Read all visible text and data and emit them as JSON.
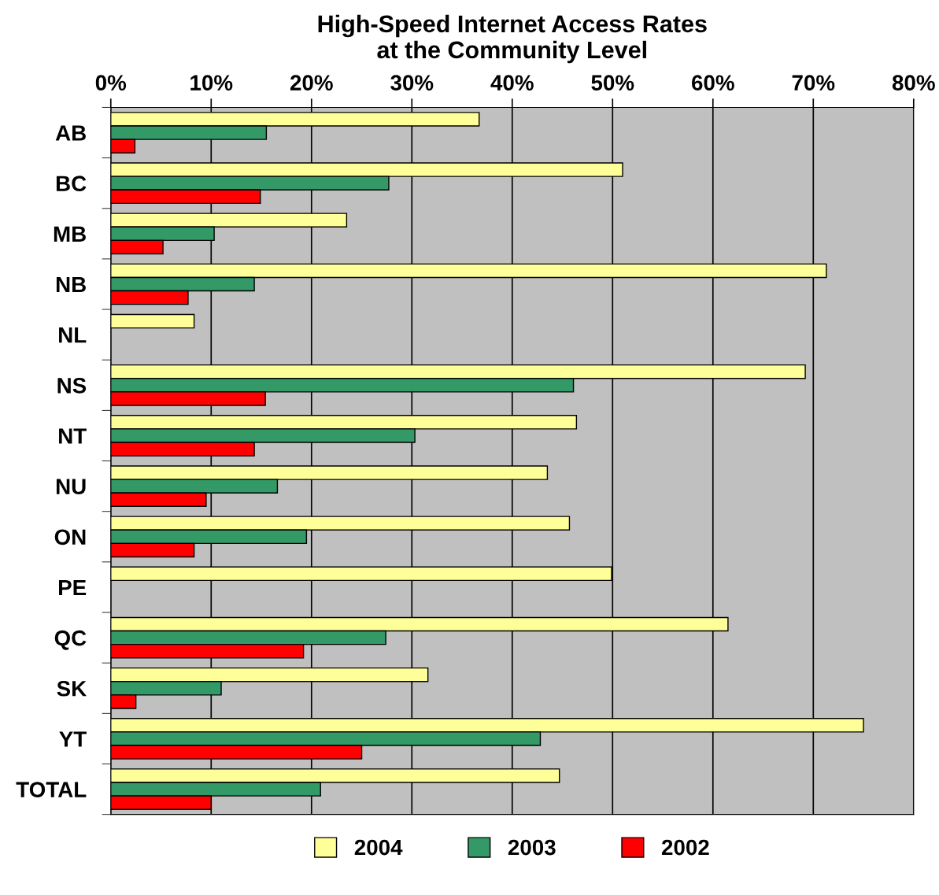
{
  "chart_data": {
    "type": "bar",
    "orientation": "horizontal",
    "title": "High-Speed Internet Access Rates\nat the Community Level",
    "categories": [
      "AB",
      "BC",
      "MB",
      "NB",
      "NL",
      "NS",
      "NT",
      "NU",
      "ON",
      "PE",
      "QC",
      "SK",
      "YT",
      "TOTAL"
    ],
    "series": [
      {
        "name": "2004",
        "color": "#ffff99",
        "values": [
          36.7,
          51.0,
          23.5,
          71.3,
          8.3,
          69.2,
          46.4,
          43.5,
          45.7,
          49.9,
          61.5,
          31.6,
          75.0,
          44.7
        ]
      },
      {
        "name": "2003",
        "color": "#339966",
        "values": [
          15.5,
          27.7,
          10.3,
          14.3,
          null,
          46.1,
          30.3,
          16.6,
          19.5,
          null,
          27.4,
          11.0,
          42.8,
          20.9
        ]
      },
      {
        "name": "2002",
        "color": "#ff0000",
        "values": [
          2.4,
          14.9,
          5.2,
          7.7,
          null,
          15.4,
          14.3,
          9.5,
          8.3,
          null,
          19.2,
          2.5,
          25.0,
          10.0
        ]
      }
    ],
    "xlim": [
      0,
      80
    ],
    "xticks": [
      {
        "value": 0,
        "label": "0%"
      },
      {
        "value": 10,
        "label": "10%"
      },
      {
        "value": 20,
        "label": "20%"
      },
      {
        "value": 30,
        "label": "30%"
      },
      {
        "value": 40,
        "label": "40%"
      },
      {
        "value": 50,
        "label": "50%"
      },
      {
        "value": 60,
        "label": "60%"
      },
      {
        "value": 70,
        "label": "70%"
      },
      {
        "value": 80,
        "label": "80%"
      }
    ],
    "grid": "x",
    "legend": "bottom"
  }
}
